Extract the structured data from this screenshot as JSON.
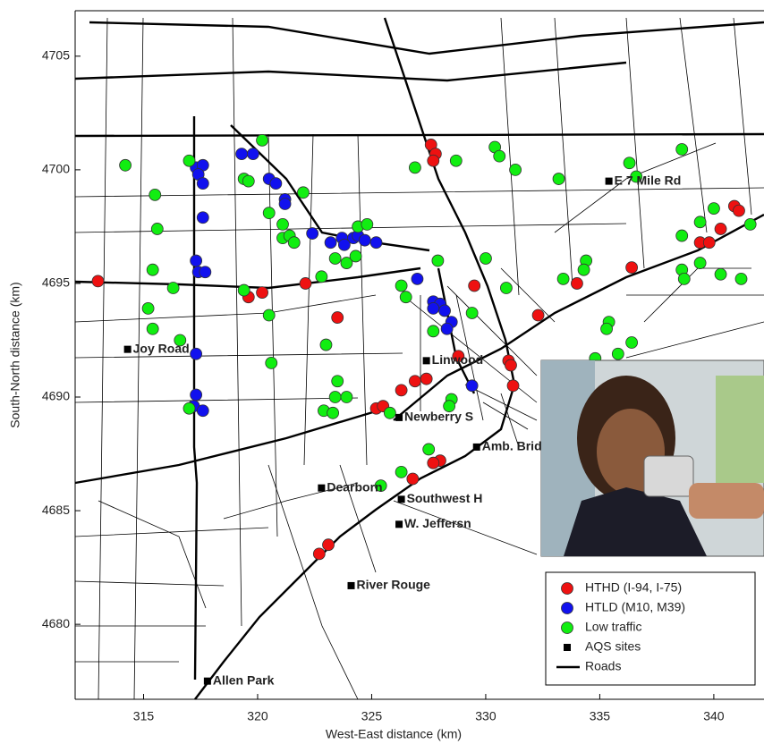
{
  "chart_data": {
    "type": "scatter",
    "xlabel": "West-East distance (km)",
    "ylabel": "South-North distance (km)",
    "xlim": [
      312,
      342.2
    ],
    "ylim": [
      4676.7,
      4707
    ],
    "xticks": [
      315,
      320,
      325,
      330,
      335,
      340
    ],
    "yticks": [
      4680,
      4685,
      4690,
      4695,
      4700,
      4705
    ],
    "grid": false,
    "legend": "lower right",
    "legend_line_entry": "Roads",
    "series": [
      {
        "name": "HTHD (I-94, I-75)",
        "color": "#ee1111",
        "marker": "o",
        "x": [
          313.0,
          319.6,
          320.2,
          322.1,
          323.5,
          327.6,
          327.8,
          327.7,
          329.5,
          332.3,
          328.8,
          331.0,
          331.1,
          331.2,
          327.4,
          326.9,
          326.3,
          325.2,
          325.5,
          328.0,
          327.7,
          326.8,
          322.7,
          323.1,
          334.0,
          336.4,
          339.4,
          339.8,
          340.3,
          340.9,
          341.1
        ],
        "y": [
          4695.1,
          4694.4,
          4694.6,
          4695.0,
          4693.5,
          4701.1,
          4700.7,
          4700.4,
          4694.9,
          4693.6,
          4691.8,
          4691.6,
          4691.4,
          4690.5,
          4690.8,
          4690.7,
          4690.3,
          4689.5,
          4689.6,
          4687.2,
          4687.1,
          4686.4,
          4683.1,
          4683.5,
          4695.0,
          4695.7,
          4696.8,
          4696.8,
          4697.4,
          4698.4,
          4698.2
        ]
      },
      {
        "name": "HTLD (M10, M39)",
        "color": "#1111ee",
        "marker": "o",
        "x": [
          317.3,
          317.6,
          317.4,
          317.6,
          317.6,
          317.3,
          317.4,
          317.7,
          317.3,
          317.3,
          317.2,
          317.6,
          319.3,
          319.8,
          320.5,
          320.8,
          321.2,
          321.2,
          322.4,
          323.2,
          323.7,
          324.2,
          324.4,
          324.7,
          323.8,
          325.2,
          327.0,
          327.7,
          328.0,
          327.7,
          328.2,
          328.5,
          328.3,
          329.4
        ],
        "y": [
          4700.1,
          4700.2,
          4699.8,
          4699.4,
          4697.9,
          4696.0,
          4695.5,
          4695.5,
          4691.9,
          4690.1,
          4689.6,
          4689.4,
          4700.7,
          4700.7,
          4699.6,
          4699.4,
          4698.7,
          4698.5,
          4697.2,
          4696.8,
          4697.0,
          4697.0,
          4697.1,
          4696.9,
          4696.7,
          4696.8,
          4695.2,
          4694.2,
          4694.1,
          4693.9,
          4693.8,
          4693.3,
          4693.0,
          4690.5
        ]
      },
      {
        "name": "Low traffic",
        "color": "#11ee11",
        "marker": "o",
        "x": [
          314.2,
          315.5,
          315.6,
          315.4,
          316.3,
          315.2,
          315.4,
          316.6,
          317.0,
          320.2,
          319.4,
          319.6,
          322.0,
          320.5,
          321.1,
          321.1,
          321.4,
          321.6,
          322.8,
          323.4,
          323.9,
          324.3,
          324.4,
          324.8,
          319.4,
          320.5,
          320.6,
          323.0,
          323.5,
          323.4,
          323.9,
          322.9,
          323.3,
          325.8,
          317.0,
          326.9,
          328.7,
          330.4,
          330.6,
          331.3,
          333.2,
          330.0,
          327.9,
          326.3,
          326.5,
          330.9,
          329.4,
          327.7,
          328.5,
          328.4,
          327.5,
          326.3,
          325.4,
          334.4,
          334.3,
          333.4,
          336.3,
          336.6,
          338.6,
          339.4,
          338.6,
          340.0,
          341.6,
          338.6,
          338.7,
          339.4,
          340.3,
          341.2,
          335.4,
          335.3,
          336.4,
          335.8,
          334.8
        ],
        "y": [
          4700.2,
          4698.9,
          4697.4,
          4695.6,
          4694.8,
          4693.9,
          4693.0,
          4692.5,
          4700.4,
          4701.3,
          4699.6,
          4699.5,
          4699.0,
          4698.1,
          4697.6,
          4697.0,
          4697.1,
          4696.8,
          4695.3,
          4696.1,
          4695.9,
          4696.2,
          4697.5,
          4697.6,
          4694.7,
          4693.6,
          4691.5,
          4692.3,
          4690.7,
          4690.0,
          4690.0,
          4689.4,
          4689.3,
          4689.3,
          4689.5,
          4700.1,
          4700.4,
          4701.0,
          4700.6,
          4700.0,
          4699.6,
          4696.1,
          4696.0,
          4694.9,
          4694.4,
          4694.8,
          4693.7,
          4692.9,
          4689.9,
          4689.6,
          4687.7,
          4686.7,
          4686.1,
          4696.0,
          4695.6,
          4695.2,
          4700.3,
          4699.7,
          4700.9,
          4697.7,
          4697.1,
          4698.3,
          4697.6,
          4695.6,
          4695.2,
          4695.9,
          4695.4,
          4695.2,
          4693.3,
          4693.0,
          4692.4,
          4691.9,
          4691.7
        ]
      },
      {
        "name": "AQS sites",
        "color": "#000000",
        "marker": "s",
        "x": [
          335.4,
          314.3,
          327.4,
          326.2,
          329.6,
          322.8,
          326.3,
          326.2,
          324.1,
          317.8
        ],
        "y": [
          4699.5,
          4692.1,
          4691.6,
          4689.1,
          4687.8,
          4686.0,
          4685.5,
          4684.4,
          4681.7,
          4677.5
        ],
        "labels": [
          "E 7 Mile Rd",
          "Joy Road",
          "Linwood",
          "Newberry S",
          "Amb. Bridge",
          "Dearborn",
          "Southwest H",
          "W. Jeffersn",
          "River Rouge",
          "Allen Park"
        ]
      }
    ]
  }
}
